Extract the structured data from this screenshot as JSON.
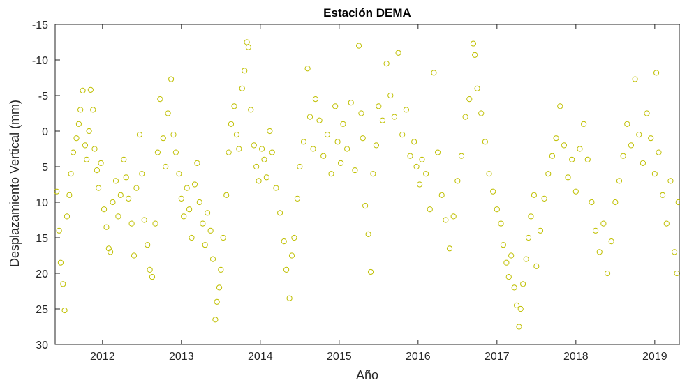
{
  "chart_data": {
    "type": "scatter",
    "title": "Estación DEMA",
    "xlabel": "Año",
    "ylabel": "Desplazamiento Vertical (mm)",
    "xlim": [
      2011.4,
      2019.32
    ],
    "ylim": [
      -15,
      30
    ],
    "y_reversed": true,
    "x_ticks": [
      2012,
      2013,
      2014,
      2015,
      2016,
      2017,
      2018,
      2019
    ],
    "x_tick_labels": [
      "2012",
      "2013",
      "2014",
      "2015",
      "2016",
      "2017",
      "2018",
      "2019"
    ],
    "y_ticks": [
      -15,
      -10,
      -5,
      0,
      5,
      10,
      15,
      20,
      25,
      30
    ],
    "y_tick_labels": [
      "-15",
      "-10",
      "-5",
      "0",
      "5",
      "10",
      "15",
      "20",
      "25",
      "30"
    ],
    "grid": false,
    "marker": "open-circle",
    "marker_color": "#BFBF00",
    "series": [
      {
        "points": [
          [
            2011.42,
            8.5
          ],
          [
            2011.45,
            14.0
          ],
          [
            2011.47,
            18.5
          ],
          [
            2011.5,
            21.5
          ],
          [
            2011.52,
            25.2
          ],
          [
            2011.55,
            12.0
          ],
          [
            2011.58,
            9.0
          ],
          [
            2011.6,
            6.0
          ],
          [
            2011.63,
            3.0
          ],
          [
            2011.67,
            1.0
          ],
          [
            2011.7,
            -1.0
          ],
          [
            2011.72,
            -3.0
          ],
          [
            2011.75,
            -5.7
          ],
          [
            2011.78,
            2.0
          ],
          [
            2011.8,
            4.0
          ],
          [
            2011.83,
            0.0
          ],
          [
            2011.85,
            -5.8
          ],
          [
            2011.88,
            -3.0
          ],
          [
            2011.9,
            2.5
          ],
          [
            2011.93,
            5.5
          ],
          [
            2011.95,
            8.0
          ],
          [
            2011.98,
            4.5
          ],
          [
            2012.02,
            11.0
          ],
          [
            2012.05,
            13.5
          ],
          [
            2012.08,
            16.5
          ],
          [
            2012.1,
            17.0
          ],
          [
            2012.13,
            10.0
          ],
          [
            2012.17,
            7.0
          ],
          [
            2012.2,
            12.0
          ],
          [
            2012.23,
            9.0
          ],
          [
            2012.27,
            4.0
          ],
          [
            2012.3,
            6.5
          ],
          [
            2012.33,
            9.5
          ],
          [
            2012.37,
            13.0
          ],
          [
            2012.4,
            17.5
          ],
          [
            2012.43,
            8.0
          ],
          [
            2012.47,
            0.5
          ],
          [
            2012.5,
            6.0
          ],
          [
            2012.53,
            12.5
          ],
          [
            2012.57,
            16.0
          ],
          [
            2012.6,
            19.5
          ],
          [
            2012.63,
            20.5
          ],
          [
            2012.67,
            13.0
          ],
          [
            2012.7,
            3.0
          ],
          [
            2012.73,
            -4.5
          ],
          [
            2012.77,
            1.0
          ],
          [
            2012.8,
            5.0
          ],
          [
            2012.83,
            -2.5
          ],
          [
            2012.87,
            -7.3
          ],
          [
            2012.9,
            0.5
          ],
          [
            2012.93,
            3.0
          ],
          [
            2012.97,
            6.0
          ],
          [
            2013.0,
            9.5
          ],
          [
            2013.03,
            12.0
          ],
          [
            2013.07,
            8.0
          ],
          [
            2013.1,
            11.0
          ],
          [
            2013.13,
            15.0
          ],
          [
            2013.17,
            7.5
          ],
          [
            2013.2,
            4.5
          ],
          [
            2013.23,
            10.0
          ],
          [
            2013.27,
            13.0
          ],
          [
            2013.3,
            16.0
          ],
          [
            2013.33,
            11.5
          ],
          [
            2013.37,
            14.0
          ],
          [
            2013.4,
            18.0
          ],
          [
            2013.43,
            26.5
          ],
          [
            2013.45,
            24.0
          ],
          [
            2013.48,
            22.0
          ],
          [
            2013.5,
            19.5
          ],
          [
            2013.53,
            15.0
          ],
          [
            2013.57,
            9.0
          ],
          [
            2013.6,
            3.0
          ],
          [
            2013.63,
            -1.0
          ],
          [
            2013.67,
            -3.5
          ],
          [
            2013.7,
            0.5
          ],
          [
            2013.73,
            2.5
          ],
          [
            2013.77,
            -6.0
          ],
          [
            2013.8,
            -8.5
          ],
          [
            2013.83,
            -12.5
          ],
          [
            2013.85,
            -11.8
          ],
          [
            2013.88,
            -3.0
          ],
          [
            2013.92,
            2.0
          ],
          [
            2013.95,
            5.0
          ],
          [
            2013.98,
            7.0
          ],
          [
            2014.02,
            2.5
          ],
          [
            2014.05,
            4.0
          ],
          [
            2014.08,
            6.5
          ],
          [
            2014.12,
            0.0
          ],
          [
            2014.15,
            3.0
          ],
          [
            2014.2,
            8.0
          ],
          [
            2014.25,
            11.5
          ],
          [
            2014.3,
            15.5
          ],
          [
            2014.33,
            19.5
          ],
          [
            2014.37,
            23.5
          ],
          [
            2014.4,
            17.5
          ],
          [
            2014.43,
            15.0
          ],
          [
            2014.47,
            9.5
          ],
          [
            2014.5,
            5.0
          ],
          [
            2014.55,
            1.5
          ],
          [
            2014.6,
            -8.8
          ],
          [
            2014.63,
            -2.0
          ],
          [
            2014.67,
            2.5
          ],
          [
            2014.7,
            -4.5
          ],
          [
            2014.75,
            -1.5
          ],
          [
            2014.8,
            3.5
          ],
          [
            2014.85,
            0.5
          ],
          [
            2014.9,
            6.0
          ],
          [
            2014.95,
            -3.5
          ],
          [
            2014.98,
            1.5
          ],
          [
            2015.02,
            4.5
          ],
          [
            2015.05,
            -1.0
          ],
          [
            2015.1,
            2.5
          ],
          [
            2015.15,
            -4.0
          ],
          [
            2015.2,
            5.5
          ],
          [
            2015.25,
            -12.0
          ],
          [
            2015.28,
            -2.5
          ],
          [
            2015.3,
            1.0
          ],
          [
            2015.33,
            10.5
          ],
          [
            2015.37,
            14.5
          ],
          [
            2015.4,
            19.8
          ],
          [
            2015.43,
            6.0
          ],
          [
            2015.47,
            2.0
          ],
          [
            2015.5,
            -3.5
          ],
          [
            2015.55,
            -1.5
          ],
          [
            2015.6,
            -9.5
          ],
          [
            2015.65,
            -5.0
          ],
          [
            2015.7,
            -2.0
          ],
          [
            2015.75,
            -11.0
          ],
          [
            2015.8,
            0.5
          ],
          [
            2015.85,
            -3.0
          ],
          [
            2015.9,
            3.5
          ],
          [
            2015.95,
            1.5
          ],
          [
            2015.98,
            5.0
          ],
          [
            2016.02,
            7.5
          ],
          [
            2016.05,
            4.0
          ],
          [
            2016.1,
            6.0
          ],
          [
            2016.15,
            11.0
          ],
          [
            2016.2,
            -8.2
          ],
          [
            2016.25,
            3.0
          ],
          [
            2016.3,
            9.0
          ],
          [
            2016.35,
            12.5
          ],
          [
            2016.4,
            16.5
          ],
          [
            2016.45,
            12.0
          ],
          [
            2016.5,
            7.0
          ],
          [
            2016.55,
            3.5
          ],
          [
            2016.6,
            -2.0
          ],
          [
            2016.65,
            -4.5
          ],
          [
            2016.7,
            -12.3
          ],
          [
            2016.72,
            -10.7
          ],
          [
            2016.75,
            -6.0
          ],
          [
            2016.8,
            -2.5
          ],
          [
            2016.85,
            1.5
          ],
          [
            2016.9,
            6.0
          ],
          [
            2016.95,
            8.5
          ],
          [
            2017.0,
            11.0
          ],
          [
            2017.05,
            13.0
          ],
          [
            2017.08,
            16.0
          ],
          [
            2017.12,
            18.5
          ],
          [
            2017.15,
            20.5
          ],
          [
            2017.18,
            17.5
          ],
          [
            2017.22,
            22.0
          ],
          [
            2017.25,
            24.5
          ],
          [
            2017.28,
            27.5
          ],
          [
            2017.3,
            25.0
          ],
          [
            2017.33,
            21.5
          ],
          [
            2017.37,
            18.0
          ],
          [
            2017.4,
            15.0
          ],
          [
            2017.43,
            12.0
          ],
          [
            2017.47,
            9.0
          ],
          [
            2017.5,
            19.0
          ],
          [
            2017.55,
            14.0
          ],
          [
            2017.6,
            9.5
          ],
          [
            2017.65,
            6.0
          ],
          [
            2017.7,
            3.5
          ],
          [
            2017.75,
            1.0
          ],
          [
            2017.8,
            -3.5
          ],
          [
            2017.85,
            2.0
          ],
          [
            2017.9,
            6.5
          ],
          [
            2017.95,
            4.0
          ],
          [
            2018.0,
            8.5
          ],
          [
            2018.05,
            2.5
          ],
          [
            2018.1,
            -1.0
          ],
          [
            2018.15,
            4.0
          ],
          [
            2018.2,
            10.0
          ],
          [
            2018.25,
            14.0
          ],
          [
            2018.3,
            17.0
          ],
          [
            2018.35,
            13.0
          ],
          [
            2018.4,
            20.0
          ],
          [
            2018.45,
            15.5
          ],
          [
            2018.5,
            10.0
          ],
          [
            2018.55,
            7.0
          ],
          [
            2018.6,
            3.5
          ],
          [
            2018.65,
            -1.0
          ],
          [
            2018.7,
            2.0
          ],
          [
            2018.75,
            -7.3
          ],
          [
            2018.8,
            0.5
          ],
          [
            2018.85,
            4.5
          ],
          [
            2018.9,
            -2.5
          ],
          [
            2018.95,
            1.0
          ],
          [
            2019.0,
            6.0
          ],
          [
            2019.02,
            -8.2
          ],
          [
            2019.05,
            3.0
          ],
          [
            2019.1,
            9.0
          ],
          [
            2019.15,
            13.0
          ],
          [
            2019.2,
            7.0
          ],
          [
            2019.25,
            17.0
          ],
          [
            2019.28,
            20.0
          ],
          [
            2019.3,
            10.0
          ]
        ]
      }
    ]
  }
}
